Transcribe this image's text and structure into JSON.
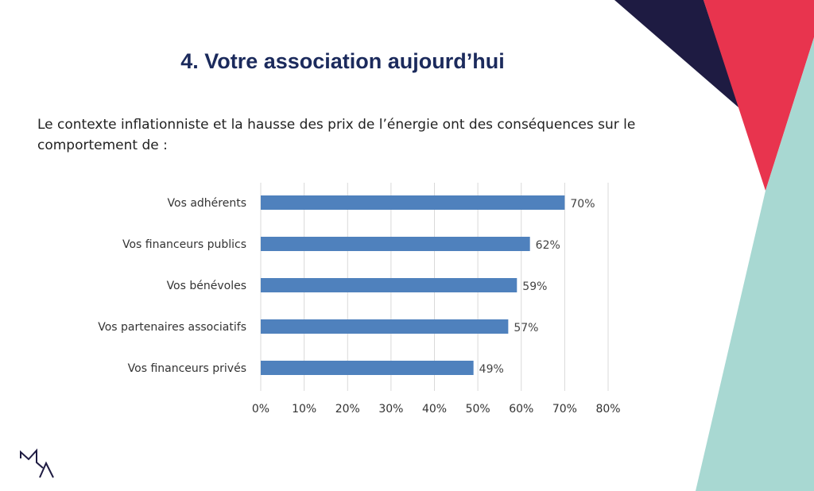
{
  "slide": {
    "title": "4. Votre association aujourd’hui",
    "subtitle": "Le contexte inflationniste et la hausse des prix de l’énergie ont des conséquences sur le comportement de :",
    "logo_text": "MA",
    "colors": {
      "navy": "#1e1b42",
      "red": "#e8344e",
      "teal": "#a8d8d2",
      "title": "#1b2a5c"
    }
  },
  "chart_data": {
    "type": "bar",
    "orientation": "horizontal",
    "categories": [
      "Vos adhérents",
      "Vos financeurs publics",
      "Vos bénévoles",
      "Vos partenaires associatifs",
      "Vos financeurs privés"
    ],
    "values": [
      70,
      62,
      59,
      57,
      49
    ],
    "data_labels": [
      "70%",
      "62%",
      "59%",
      "57%",
      "49%"
    ],
    "xlim": [
      0,
      80
    ],
    "x_ticks": [
      "0%",
      "10%",
      "20%",
      "30%",
      "40%",
      "50%",
      "60%",
      "70%",
      "80%"
    ],
    "grid": true,
    "bar_color": "#4f81bd"
  }
}
